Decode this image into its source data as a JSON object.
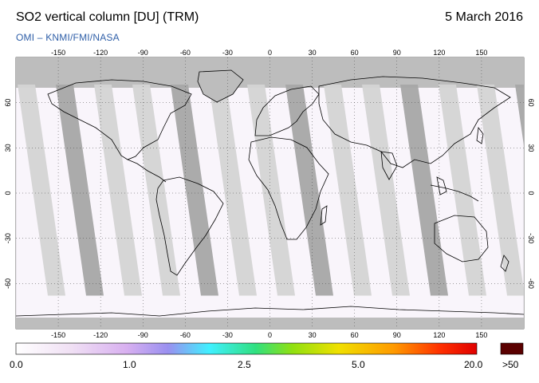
{
  "header": {
    "title": "SO2 vertical column [DU] (TRM)",
    "date": "5 March 2016",
    "credit": "OMI  –  KNMI/FMI/NASA"
  },
  "map": {
    "lon_ticks": [
      "-150",
      "-120",
      "-90",
      "-60",
      "-30",
      "0",
      "30",
      "60",
      "90",
      "120",
      "150"
    ],
    "lat_ticks_left": [
      "60",
      "30",
      "0",
      "-30",
      "-60"
    ],
    "lat_ticks_right": [
      "60",
      "30",
      "0",
      "-30",
      "-60"
    ],
    "lon_range": [
      -180,
      180
    ],
    "lat_range": [
      -90,
      90
    ],
    "swath_colors": {
      "light": "#d4d4d4",
      "dark": "#a6a6a6",
      "land": "#bdbdbd"
    }
  },
  "legend": {
    "labels": [
      "0.0",
      "1.0",
      "2.5",
      "5.0",
      "20.0"
    ],
    "overflow_label": ">50",
    "overflow_color": "#5a0000",
    "colors": [
      "#ffffff",
      "#e8c8f0",
      "#c8a0f0",
      "#8a8ef5",
      "#3ff0ff",
      "#20e060",
      "#90e000",
      "#f0e000",
      "#ff9000",
      "#ff2000",
      "#c00000"
    ]
  }
}
